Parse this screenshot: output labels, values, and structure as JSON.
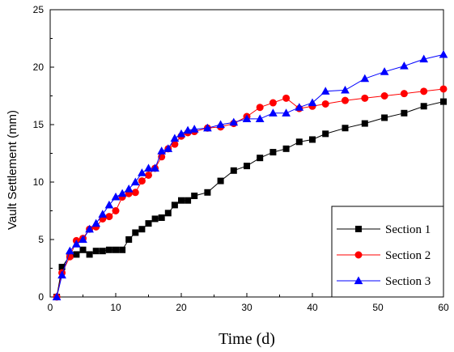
{
  "chart_data": {
    "type": "line",
    "xlabel": "Time (d)",
    "ylabel": "Vault Settlement (mm)",
    "xlim": [
      0,
      60
    ],
    "ylim": [
      0,
      25
    ],
    "xticks": [
      "0",
      "10",
      "20",
      "30",
      "40",
      "50",
      "60"
    ],
    "yticks": [
      "0",
      "5",
      "10",
      "15",
      "20",
      "25"
    ],
    "grid": false,
    "legend_position": "bottom-right",
    "series": [
      {
        "name": "Section 1",
        "marker": "square",
        "color": "#000000",
        "line_color": "#000000",
        "x": [
          1,
          1.8,
          3,
          4,
          5,
          6,
          7,
          8,
          9,
          10,
          11,
          12,
          13,
          14,
          15,
          16,
          17,
          18,
          19,
          20,
          21,
          22,
          24,
          26,
          28,
          30,
          32,
          34,
          36,
          38,
          40,
          42,
          45,
          48,
          51,
          54,
          57,
          60
        ],
        "y": [
          0,
          2.6,
          3.6,
          3.7,
          4.1,
          3.7,
          4.0,
          4.0,
          4.1,
          4.1,
          4.1,
          5.0,
          5.6,
          5.9,
          6.4,
          6.8,
          6.9,
          7.3,
          8.0,
          8.4,
          8.4,
          8.8,
          9.1,
          10.1,
          11.0,
          11.4,
          12.1,
          12.6,
          12.9,
          13.5,
          13.7,
          14.2,
          14.7,
          15.1,
          15.6,
          16.0,
          16.6,
          17.0
        ]
      },
      {
        "name": "Section 2",
        "marker": "circle",
        "color": "#ff0000",
        "line_color": "#ff0000",
        "x": [
          1,
          1.8,
          3,
          4,
          5,
          6,
          7,
          8,
          9,
          10,
          11,
          12,
          13,
          14,
          15,
          16,
          17,
          18,
          19,
          20,
          21,
          22,
          24,
          26,
          28,
          30,
          32,
          34,
          36,
          38,
          40,
          42,
          45,
          48,
          51,
          54,
          57,
          60
        ],
        "y": [
          0,
          2.1,
          3.5,
          4.9,
          5.1,
          5.9,
          6.1,
          6.8,
          7.0,
          7.5,
          8.7,
          9.0,
          9.1,
          10.1,
          10.6,
          11.2,
          12.2,
          12.9,
          13.3,
          14.0,
          14.3,
          14.4,
          14.7,
          14.8,
          15.1,
          15.7,
          16.5,
          16.9,
          17.3,
          16.4,
          16.6,
          16.8,
          17.1,
          17.3,
          17.5,
          17.7,
          17.9,
          18.1
        ]
      },
      {
        "name": "Section 3",
        "marker": "triangle",
        "color": "#0000ff",
        "line_color": "#0000ff",
        "x": [
          1,
          1.8,
          3,
          4,
          5,
          6,
          7,
          8,
          9,
          10,
          11,
          12,
          13,
          14,
          15,
          16,
          17,
          18,
          19,
          20,
          21,
          22,
          24,
          26,
          28,
          30,
          32,
          34,
          36,
          38,
          40,
          42,
          45,
          48,
          51,
          54,
          57,
          60
        ],
        "y": [
          0,
          1.9,
          4.0,
          4.6,
          5.0,
          5.9,
          6.4,
          7.2,
          8.0,
          8.7,
          9.0,
          9.4,
          10.0,
          10.8,
          11.2,
          11.2,
          12.7,
          12.9,
          13.8,
          14.2,
          14.5,
          14.6,
          14.7,
          15.0,
          15.2,
          15.5,
          15.5,
          16.0,
          16.0,
          16.5,
          16.9,
          17.9,
          18.0,
          19.0,
          19.6,
          20.1,
          20.7,
          21.1
        ]
      }
    ]
  }
}
